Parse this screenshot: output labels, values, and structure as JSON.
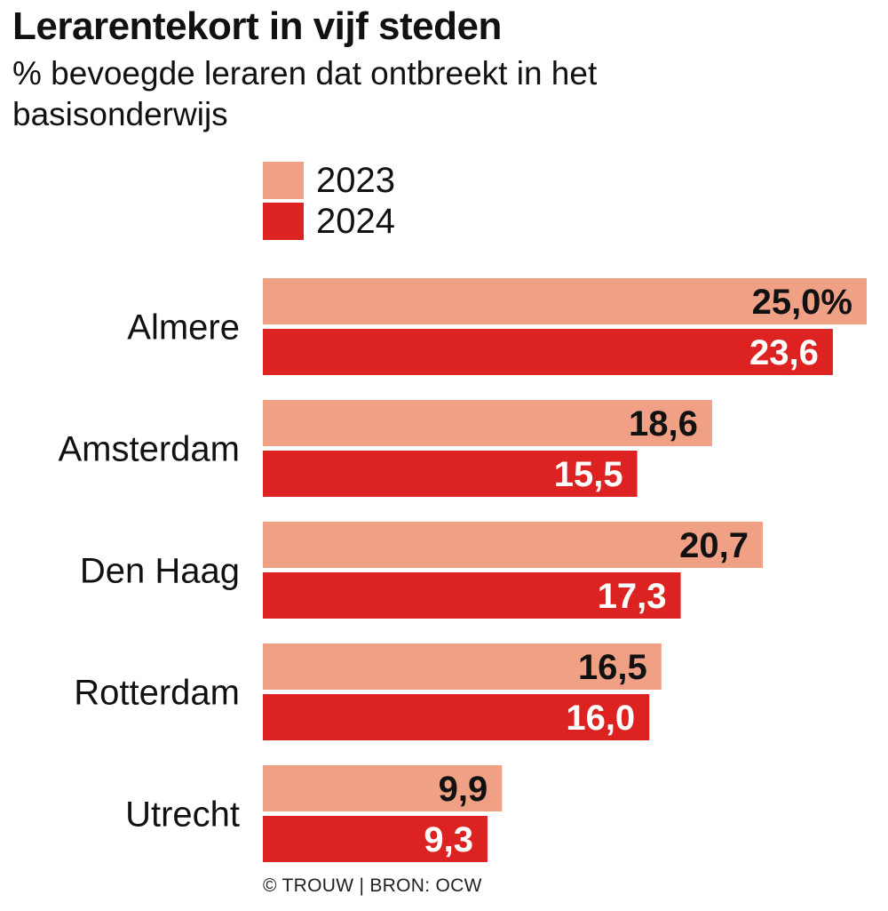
{
  "header": {
    "title": "Lerarentekort in vijf steden",
    "subtitle": "% bevoegde leraren dat ontbreekt in het basisonderwijs"
  },
  "colors": {
    "2023": "#f0a084",
    "2024": "#dd2222",
    "label_on_2023": "#111111",
    "label_on_2024": "#ffffff"
  },
  "source": "© TROUW | BRON: OCW",
  "chart_data": {
    "type": "bar",
    "orientation": "horizontal",
    "categories": [
      "Almere",
      "Amsterdam",
      "Den Haag",
      "Rotterdam",
      "Utrecht"
    ],
    "series": [
      {
        "name": "2023",
        "values": [
          25.0,
          18.6,
          20.7,
          16.5,
          9.9
        ],
        "labels": [
          "25,0%",
          "18,6",
          "20,7",
          "16,5",
          "9,9"
        ]
      },
      {
        "name": "2024",
        "values": [
          23.6,
          15.5,
          17.3,
          16.0,
          9.3
        ],
        "labels": [
          "23,6",
          "15,5",
          "17,3",
          "16,0",
          "9,3"
        ]
      }
    ],
    "title": "Lerarentekort in vijf steden",
    "subtitle": "% bevoegde leraren dat ontbreekt in het basisonderwijs",
    "xlim": [
      0,
      25
    ],
    "grid": false,
    "legend_position": "top"
  }
}
